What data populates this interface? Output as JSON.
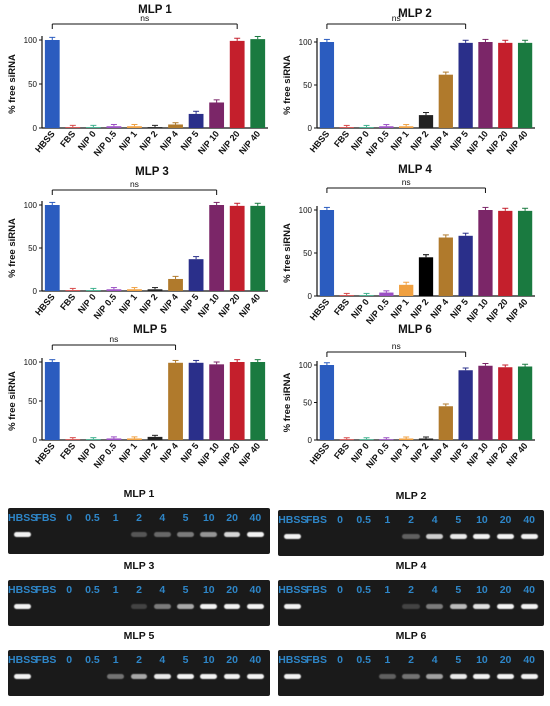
{
  "chart_data": [
    {
      "type": "bar",
      "title": "MLP 1",
      "ylabel": "% free siRNA",
      "ylim": [
        0,
        100
      ],
      "yticks": [
        0,
        50,
        100
      ],
      "categories": [
        "HBSS",
        "FBS",
        "N/P 0",
        "N/P 0.5",
        "N/P 1",
        "N/P 2",
        "N/P 4",
        "N/P 5",
        "N/P 10",
        "N/P 20",
        "N/P 40"
      ],
      "values": [
        100,
        1,
        1,
        2,
        2,
        1,
        4,
        16,
        29,
        99,
        101
      ],
      "colors": [
        "#2b5cbf",
        "#d94a4a",
        "#3fb28f",
        "#9b4fc4",
        "#f0a040",
        "#222222",
        "#b07a2c",
        "#2a2f8a",
        "#7b2668",
        "#c41f2c",
        "#1a7a40"
      ],
      "annotation": {
        "text": "ns",
        "from": "HBSS",
        "to": "N/P 20"
      }
    },
    {
      "type": "bar",
      "title": "MLP 2",
      "ylabel": "% free siRNA",
      "ylim": [
        0,
        100
      ],
      "yticks": [
        0,
        50,
        100
      ],
      "categories": [
        "HBSS",
        "FBS",
        "N/P 0",
        "N/P 0.5",
        "N/P 1",
        "N/P 2",
        "N/P 4",
        "N/P 5",
        "N/P 10",
        "N/P 20",
        "N/P 40"
      ],
      "values": [
        100,
        1,
        1,
        2,
        2,
        15,
        62,
        99,
        100,
        99,
        99
      ],
      "colors": [
        "#2b5cbf",
        "#d94a4a",
        "#3fb28f",
        "#9b4fc4",
        "#f0a040",
        "#222222",
        "#b07a2c",
        "#2a2f8a",
        "#7b2668",
        "#c41f2c",
        "#1a7a40"
      ],
      "annotation": {
        "text": "ns",
        "from": "HBSS",
        "to": "N/P 5"
      }
    },
    {
      "type": "bar",
      "title": "MLP 3",
      "ylabel": "% free siRNA",
      "ylim": [
        0,
        100
      ],
      "yticks": [
        0,
        50,
        100
      ],
      "categories": [
        "HBSS",
        "FBS",
        "N/P 0",
        "N/P 0.5",
        "N/P 1",
        "N/P 2",
        "N/P 4",
        "N/P 5",
        "N/P 10",
        "N/P 20",
        "N/P 40"
      ],
      "values": [
        100,
        1,
        1,
        2,
        2,
        2,
        14,
        37,
        100,
        99,
        99
      ],
      "colors": [
        "#2b5cbf",
        "#d94a4a",
        "#3fb28f",
        "#9b4fc4",
        "#f0a040",
        "#222222",
        "#b07a2c",
        "#2a2f8a",
        "#7b2668",
        "#c41f2c",
        "#1a7a40"
      ],
      "annotation": {
        "text": "ns",
        "from": "HBSS",
        "to": "N/P 10"
      }
    },
    {
      "type": "bar",
      "title": "MLP 4",
      "ylabel": "% free siRNA",
      "ylim": [
        0,
        100
      ],
      "yticks": [
        0,
        50,
        100
      ],
      "categories": [
        "HBSS",
        "FBS",
        "N/P 0",
        "N/P 0.5",
        "N/P 1",
        "N/P 2",
        "N/P 4",
        "N/P 5",
        "N/P 10",
        "N/P 20",
        "N/P 40"
      ],
      "values": [
        100,
        1,
        1,
        4,
        13,
        45,
        68,
        70,
        100,
        99,
        99
      ],
      "colors": [
        "#2b5cbf",
        "#d94a4a",
        "#3fb28f",
        "#9b4fc4",
        "#f0a040",
        "#000000",
        "#b07a2c",
        "#2a2f8a",
        "#7b2668",
        "#c41f2c",
        "#1a7a40"
      ],
      "annotation": {
        "text": "ns",
        "from": "HBSS",
        "to": "N/P 10"
      }
    },
    {
      "type": "bar",
      "title": "MLP 5",
      "ylabel": "% free siRNA",
      "ylim": [
        0,
        100
      ],
      "yticks": [
        0,
        50,
        100
      ],
      "categories": [
        "HBSS",
        "FBS",
        "N/P 0",
        "N/P 0.5",
        "N/P 1",
        "N/P 2",
        "N/P 4",
        "N/P 5",
        "N/P 10",
        "N/P 20",
        "N/P 40"
      ],
      "values": [
        100,
        1,
        1,
        2,
        2,
        4,
        99,
        99,
        97,
        100,
        100
      ],
      "colors": [
        "#2b5cbf",
        "#d94a4a",
        "#3fb28f",
        "#9b4fc4",
        "#f0a040",
        "#222222",
        "#b07a2c",
        "#2a2f8a",
        "#7b2668",
        "#c41f2c",
        "#1a7a40"
      ],
      "annotation": {
        "text": "ns",
        "from": "HBSS",
        "to": "N/P 4"
      }
    },
    {
      "type": "bar",
      "title": "MLP 6",
      "ylabel": "% free siRNA",
      "ylim": [
        0,
        100
      ],
      "yticks": [
        0,
        50,
        100
      ],
      "categories": [
        "HBSS",
        "FBS",
        "N/P 0",
        "N/P 0.5",
        "N/P 1",
        "N/P 2",
        "N/P 4",
        "N/P 5",
        "N/P 10",
        "N/P 20",
        "N/P 40"
      ],
      "values": [
        100,
        1,
        1,
        1,
        2,
        2,
        45,
        93,
        99,
        97,
        98
      ],
      "colors": [
        "#2b5cbf",
        "#d94a4a",
        "#3fb28f",
        "#9b4fc4",
        "#f0a040",
        "#222222",
        "#b07a2c",
        "#2a2f8a",
        "#7b2668",
        "#c41f2c",
        "#1a7a40"
      ],
      "annotation": {
        "text": "ns",
        "from": "HBSS",
        "to": "N/P 5"
      }
    }
  ],
  "gels": [
    {
      "title": "MLP 1",
      "lanes": [
        "HBSS",
        "FBS",
        "0",
        "0.5",
        "1",
        "2",
        "4",
        "5",
        "10",
        "20",
        "40"
      ],
      "band_intensity": [
        1.0,
        0,
        0,
        0,
        0,
        0.15,
        0.25,
        0.35,
        0.5,
        0.85,
        1.0
      ]
    },
    {
      "title": "MLP 2",
      "lanes": [
        "HBSS",
        "FBS",
        "0",
        "0.5",
        "1",
        "2",
        "4",
        "5",
        "10",
        "20",
        "40"
      ],
      "band_intensity": [
        1.0,
        0,
        0,
        0,
        0,
        0.2,
        0.8,
        0.95,
        1.0,
        1.0,
        1.0
      ]
    },
    {
      "title": "MLP 3",
      "lanes": [
        "HBSS",
        "FBS",
        "0",
        "0.5",
        "1",
        "2",
        "4",
        "5",
        "10",
        "20",
        "40"
      ],
      "band_intensity": [
        1.0,
        0,
        0,
        0,
        0,
        0.05,
        0.35,
        0.6,
        1.0,
        1.0,
        1.0
      ]
    },
    {
      "title": "MLP 4",
      "lanes": [
        "HBSS",
        "FBS",
        "0",
        "0.5",
        "1",
        "2",
        "4",
        "5",
        "10",
        "20",
        "40"
      ],
      "band_intensity": [
        1.0,
        0,
        0,
        0,
        0,
        0.05,
        0.35,
        0.7,
        0.9,
        1.0,
        1.0
      ]
    },
    {
      "title": "MLP 5",
      "lanes": [
        "HBSS",
        "FBS",
        "0",
        "0.5",
        "1",
        "2",
        "4",
        "5",
        "10",
        "20",
        "40"
      ],
      "band_intensity": [
        1.0,
        0,
        0,
        0,
        0.3,
        0.6,
        0.95,
        1.0,
        1.0,
        1.0,
        1.0
      ]
    },
    {
      "title": "MLP 6",
      "lanes": [
        "HBSS",
        "FBS",
        "0",
        "0.5",
        "1",
        "2",
        "4",
        "5",
        "10",
        "20",
        "40"
      ],
      "band_intensity": [
        1.0,
        0,
        0,
        0,
        0.2,
        0.3,
        0.55,
        0.95,
        1.0,
        1.0,
        1.0
      ]
    }
  ]
}
